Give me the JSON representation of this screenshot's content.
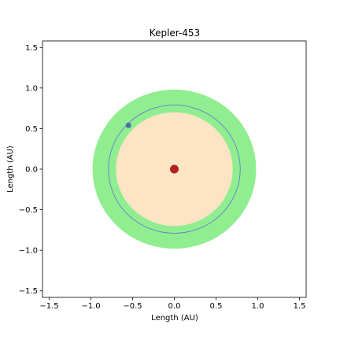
{
  "chart_data": {
    "type": "scatter",
    "title": "Kepler-453",
    "xlabel": "Length (AU)",
    "ylabel": "Length (AU)",
    "xlim": [
      -1.58,
      1.58
    ],
    "ylim": [
      -1.58,
      1.58
    ],
    "xticks": [
      -1.5,
      -1.0,
      -0.5,
      0.0,
      0.5,
      1.0,
      1.5
    ],
    "yticks": [
      -1.5,
      -1.0,
      -0.5,
      0.0,
      0.5,
      1.0,
      1.5
    ],
    "xtick_labels": [
      "−1.5",
      "−1.0",
      "−0.5",
      "0.0",
      "0.5",
      "1.0",
      "1.5"
    ],
    "ytick_labels": [
      "−1.5",
      "−1.0",
      "−0.5",
      "0.0",
      "0.5",
      "1.0",
      "1.5"
    ],
    "grid": false,
    "legend": "none",
    "habitable_zone": {
      "inner_radius_au": 0.7,
      "outer_radius_au": 0.98,
      "color": "#90ee90"
    },
    "inner_region": {
      "radius_au": 0.7,
      "color": "#fce4c4"
    },
    "orbit": {
      "radius_au": 0.79,
      "color": "#5b6fd6"
    },
    "star": {
      "x": 0.0,
      "y": 0.0,
      "color": "#b22222"
    },
    "planet": {
      "x": -0.55,
      "y": 0.54,
      "color": "#4a72a8"
    }
  }
}
